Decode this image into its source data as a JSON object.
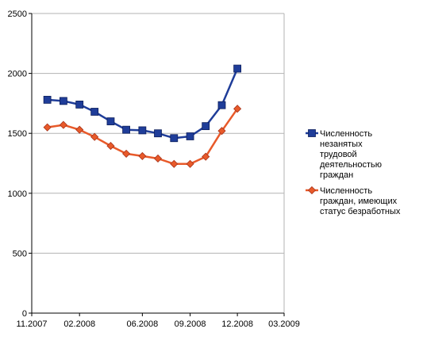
{
  "chart_data": {
    "type": "line",
    "title": "",
    "xlabel": "",
    "ylabel": "",
    "xlim": [
      "2007-11-01",
      "2009-03-01"
    ],
    "ylim": [
      0,
      2500
    ],
    "x_ticks": [
      "2007-11-01",
      "2008-02-01",
      "2008-06-01",
      "2008-09-01",
      "2008-12-01",
      "2009-03-01"
    ],
    "x_tick_labels": [
      "11.2007",
      "02.2008",
      "06.2008",
      "09.2008",
      "12.2008",
      "03.2009"
    ],
    "y_ticks": [
      0,
      500,
      1000,
      1500,
      2000,
      2500
    ],
    "y_tick_labels": [
      "0",
      "500",
      "1000",
      "1500",
      "2000",
      "2500"
    ],
    "grid": true,
    "legend_position": "right",
    "x": [
      "2007-12-01",
      "2008-01-01",
      "2008-02-01",
      "2008-03-01",
      "2008-04-01",
      "2008-05-01",
      "2008-06-01",
      "2008-07-01",
      "2008-08-01",
      "2008-09-01",
      "2008-10-01",
      "2008-11-01",
      "2008-12-01"
    ],
    "series": [
      {
        "name_lines": [
          "Численность",
          "незанятых",
          "трудовой",
          "деятельностью",
          "граждан"
        ],
        "color": "#1f3d99",
        "marker": "square",
        "values": [
          1780,
          1770,
          1740,
          1680,
          1600,
          1530,
          1525,
          1500,
          1460,
          1475,
          1560,
          1735,
          2040
        ]
      },
      {
        "name_lines": [
          "Численность",
          "граждан, имеющих",
          "статус безработных"
        ],
        "color": "#e85a2a",
        "marker": "diamond",
        "values": [
          1550,
          1570,
          1530,
          1470,
          1395,
          1330,
          1310,
          1290,
          1245,
          1245,
          1305,
          1520,
          1705
        ]
      }
    ]
  }
}
